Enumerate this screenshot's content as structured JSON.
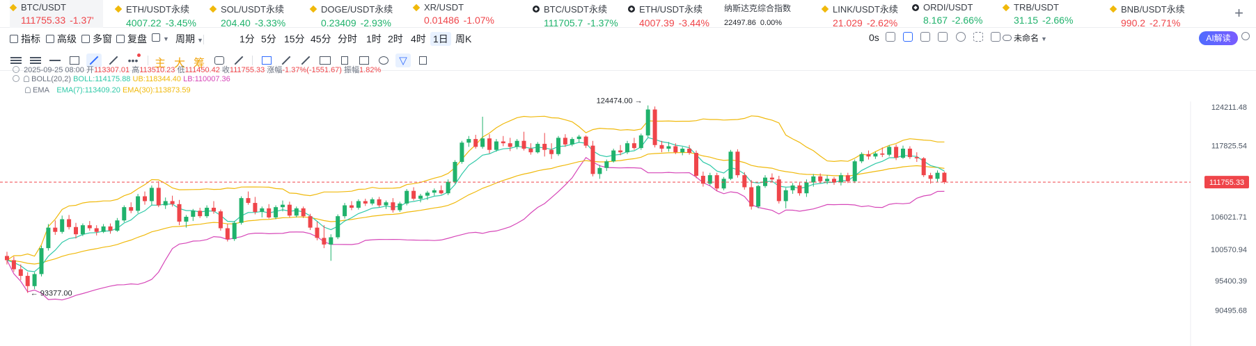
{
  "tickers": [
    {
      "name": "BTC/USDT",
      "price": "111755.33",
      "change": "-1.37'",
      "dir": "down",
      "icon": "binance-diamond-icon",
      "active": true
    },
    {
      "name": "ETH/USDT永续",
      "price": "4007.22",
      "change": "-3.45%",
      "dir": "up",
      "icon": "binance-diamond-icon"
    },
    {
      "name": "SOL/USDT永续",
      "price": "204.40",
      "change": "-3.33%",
      "dir": "up",
      "icon": "binance-diamond-icon"
    },
    {
      "name": "DOGE/USDT永续",
      "price": "0.23409",
      "change": "-2.93%",
      "dir": "up",
      "icon": "binance-diamond-icon"
    },
    {
      "name": "XR/USDT",
      "price": "0.01486",
      "change": "-1.07%",
      "dir": "down",
      "icon": "binance-diamond-icon"
    },
    {
      "name": "BTC/USDT永续",
      "price": "111705.7",
      "change": "-1.37%",
      "dir": "up",
      "icon": "okx-icon"
    },
    {
      "name": "ETH/USDT永续",
      "price": "4007.39",
      "change": "-3.44%",
      "dir": "down",
      "icon": "okx-icon"
    },
    {
      "name": "纳斯达克综合指数",
      "price": "22497.86",
      "change": "0.00%",
      "dir": "neutral",
      "icon": ""
    },
    {
      "name": "LINK/USDT永续",
      "price": "21.029",
      "change": "-2.62%",
      "dir": "down",
      "icon": "binance-diamond-icon"
    },
    {
      "name": "ORDI/USDT",
      "price": "8.167",
      "change": "-2.66%",
      "dir": "up",
      "icon": "okx-icon"
    },
    {
      "name": "TRB/USDT",
      "price": "31.15",
      "change": "-2.66%",
      "dir": "up",
      "icon": "binance-diamond-icon"
    },
    {
      "name": "BNB/USDT永续",
      "price": "990.2",
      "change": "-2.71%",
      "dir": "down",
      "icon": "binance-diamond-icon"
    }
  ],
  "add_button": "+",
  "toolbar": {
    "indicators": "指标",
    "advanced": "高级",
    "multi_window": "多窗",
    "replay": "复盘",
    "period": "周期",
    "intervals": [
      "1分",
      "5分",
      "15分",
      "45分",
      "分时",
      "1时",
      "2时",
      "4时",
      "1日",
      "周K"
    ],
    "active_interval": "1日",
    "countdown": "0s",
    "layout_name": "未命名",
    "ai_button": "AI解读"
  },
  "drawing_tools": {
    "main_label": "主",
    "large_label": "大",
    "chip_label": "筹"
  },
  "info": {
    "date": "2025-09-25 08:00",
    "open_label": "开",
    "open": "113307.01",
    "high_label": "高",
    "high": "113510.23",
    "low_label": "低",
    "low": "111450.42",
    "close_label": "收",
    "close": "111755.33",
    "change_label": "涨幅",
    "change": "-1.37%(-1551.67)",
    "amplitude_label": "振幅",
    "amplitude": "1.82%",
    "boll_name": "BOLL(20,2)",
    "boll_mid": "BOLL:114175.88",
    "boll_ub": "UB:118344.40",
    "boll_lb": "LB:110007.36",
    "ema_name": "EMA",
    "ema7": "EMA(7):113409.20",
    "ema30": "EMA(30):113873.59"
  },
  "colors": {
    "up": "#20b26c",
    "down": "#ef454a",
    "boll_mid": "#2fc9a8",
    "boll_upper": "#f0b90b",
    "boll_lower": "#d646b8",
    "ema7": "#2fc9a8",
    "ema30": "#f0b90b",
    "accent": "#2f6bff"
  },
  "chart_data": {
    "type": "candlestick",
    "interval": "1D",
    "ylim": [
      88000,
      128000
    ],
    "y_ticks": [
      "124211.48",
      "117825.54",
      "106021.71",
      "100570.94",
      "95400.39",
      "90495.68"
    ],
    "current_price": "111755.33",
    "annotations": [
      {
        "text": "124474.00",
        "price": 124474
      },
      {
        "text": "93377.00",
        "price": 93377
      }
    ],
    "candles": [
      [
        99500,
        100200,
        98100,
        98800
      ],
      [
        98800,
        99400,
        96900,
        97300
      ],
      [
        97300,
        98100,
        95500,
        96200
      ],
      [
        96200,
        96800,
        93377,
        94500
      ],
      [
        94500,
        96800,
        94000,
        96500
      ],
      [
        96500,
        101200,
        96100,
        100800
      ],
      [
        100800,
        104800,
        100400,
        104200
      ],
      [
        104200,
        105400,
        103000,
        103500
      ],
      [
        103500,
        106200,
        103200,
        105600
      ],
      [
        105600,
        106300,
        103900,
        104300
      ],
      [
        104300,
        105000,
        102400,
        103100
      ],
      [
        103100,
        104900,
        102800,
        104600
      ],
      [
        104600,
        105300,
        103700,
        104100
      ],
      [
        104100,
        104600,
        102900,
        103500
      ],
      [
        103500,
        104800,
        103300,
        104400
      ],
      [
        104400,
        104900,
        103200,
        103700
      ],
      [
        103700,
        105800,
        103500,
        105400
      ],
      [
        105400,
        107900,
        105100,
        107600
      ],
      [
        107600,
        108400,
        106600,
        107000
      ],
      [
        107000,
        109800,
        106600,
        109400
      ],
      [
        109400,
        110200,
        108000,
        108600
      ],
      [
        108600,
        111200,
        107900,
        110800
      ],
      [
        110800,
        111900,
        107600,
        107900
      ],
      [
        107900,
        109200,
        107300,
        108600
      ],
      [
        108600,
        109500,
        107700,
        108100
      ],
      [
        108100,
        108800,
        104600,
        105200
      ],
      [
        105200,
        106300,
        104200,
        106000
      ],
      [
        106000,
        107300,
        105300,
        107000
      ],
      [
        107000,
        107500,
        105800,
        106100
      ],
      [
        106100,
        107900,
        105800,
        107500
      ],
      [
        107500,
        108600,
        106500,
        106900
      ],
      [
        106900,
        107200,
        103700,
        104100
      ],
      [
        104100,
        104800,
        101900,
        102300
      ],
      [
        102300,
        105300,
        102000,
        105000
      ],
      [
        105000,
        109400,
        104700,
        109100
      ],
      [
        109100,
        110200,
        108000,
        108300
      ],
      [
        108300,
        109300,
        106400,
        106800
      ],
      [
        106800,
        107700,
        105900,
        107400
      ],
      [
        107400,
        108100,
        105700,
        105900
      ],
      [
        105900,
        107900,
        105600,
        107600
      ],
      [
        107600,
        108700,
        106900,
        108000
      ],
      [
        108000,
        108500,
        105900,
        106200
      ],
      [
        106200,
        107700,
        105900,
        107400
      ],
      [
        107400,
        107700,
        105800,
        106100
      ],
      [
        106100,
        106500,
        103800,
        104200
      ],
      [
        104200,
        105200,
        102100,
        102500
      ],
      [
        102500,
        104600,
        100800,
        101400
      ],
      [
        101400,
        103100,
        98700,
        102600
      ],
      [
        102600,
        106400,
        102300,
        106100
      ],
      [
        106100,
        108300,
        105700,
        107900
      ],
      [
        107900,
        108600,
        107100,
        107500
      ],
      [
        107500,
        108900,
        107200,
        108600
      ],
      [
        108600,
        109000,
        107800,
        108200
      ],
      [
        108200,
        109200,
        107900,
        108900
      ],
      [
        108900,
        109300,
        107600,
        107900
      ],
      [
        107900,
        108700,
        107300,
        108400
      ],
      [
        108400,
        109100,
        106700,
        107100
      ],
      [
        107100,
        108500,
        106800,
        108200
      ],
      [
        108200,
        110600,
        107900,
        110300
      ],
      [
        110300,
        110900,
        108700,
        109000
      ],
      [
        109000,
        109800,
        108400,
        109500
      ],
      [
        109500,
        110300,
        108800,
        110000
      ],
      [
        110000,
        110700,
        109500,
        110400
      ],
      [
        110400,
        111200,
        109700,
        109900
      ],
      [
        109900,
        112200,
        109600,
        111800
      ],
      [
        111800,
        115400,
        111500,
        115100
      ],
      [
        115100,
        118600,
        114800,
        118300
      ],
      [
        118300,
        119400,
        117600,
        118900
      ],
      [
        118900,
        119600,
        117300,
        117600
      ],
      [
        117600,
        122600,
        117300,
        119000
      ],
      [
        119000,
        119700,
        116500,
        117100
      ],
      [
        117100,
        118900,
        116800,
        118500
      ],
      [
        118500,
        119400,
        117700,
        118200
      ],
      [
        118200,
        119100,
        116900,
        117600
      ],
      [
        117600,
        118900,
        117200,
        118600
      ],
      [
        118600,
        120100,
        117000,
        117300
      ],
      [
        117300,
        118200,
        116300,
        116700
      ],
      [
        116700,
        118400,
        116500,
        118100
      ],
      [
        118100,
        119900,
        116000,
        117100
      ],
      [
        117100,
        118200,
        115600,
        116400
      ],
      [
        116400,
        119400,
        116100,
        119100
      ],
      [
        119100,
        119700,
        117600,
        118000
      ],
      [
        118000,
        119200,
        117700,
        118900
      ],
      [
        118900,
        119600,
        118300,
        119300
      ],
      [
        119300,
        119500,
        117400,
        117800
      ],
      [
        117800,
        118600,
        112700,
        113100
      ],
      [
        113100,
        114600,
        112300,
        114100
      ],
      [
        114100,
        115500,
        113600,
        115200
      ],
      [
        115200,
        117300,
        115000,
        117000
      ],
      [
        117000,
        117900,
        116200,
        116700
      ],
      [
        116700,
        118600,
        116400,
        118200
      ],
      [
        118200,
        119100,
        117100,
        117400
      ],
      [
        117400,
        119800,
        117100,
        119500
      ],
      [
        119500,
        124474,
        119200,
        123800
      ],
      [
        123800,
        124300,
        117500,
        117900
      ],
      [
        117900,
        118600,
        116700,
        117300
      ],
      [
        117300,
        118400,
        116800,
        117700
      ],
      [
        117700,
        118200,
        116400,
        116700
      ],
      [
        116700,
        117600,
        116200,
        117300
      ],
      [
        117300,
        117900,
        116300,
        116600
      ],
      [
        116600,
        117000,
        112400,
        112800
      ],
      [
        112800,
        113500,
        111000,
        111500
      ],
      [
        111500,
        113300,
        111200,
        112900
      ],
      [
        112900,
        113300,
        110300,
        110700
      ],
      [
        110700,
        112600,
        110400,
        112300
      ],
      [
        112300,
        117100,
        112100,
        116800
      ],
      [
        116800,
        117200,
        112500,
        112900
      ],
      [
        112900,
        113400,
        110500,
        110900
      ],
      [
        110900,
        112100,
        107200,
        107700
      ],
      [
        107700,
        111300,
        107400,
        111100
      ],
      [
        111100,
        112900,
        110800,
        112500
      ],
      [
        112500,
        113200,
        111800,
        112200
      ],
      [
        112200,
        112800,
        108200,
        108600
      ],
      [
        108600,
        110800,
        107400,
        110400
      ],
      [
        110400,
        111600,
        109800,
        111200
      ],
      [
        111200,
        111700,
        109500,
        109900
      ],
      [
        109900,
        112200,
        109300,
        111700
      ],
      [
        111700,
        113100,
        111000,
        112700
      ],
      [
        112700,
        113200,
        111600,
        111900
      ],
      [
        111900,
        112900,
        111400,
        112300
      ],
      [
        112300,
        112600,
        111300,
        111700
      ],
      [
        111700,
        113300,
        111200,
        112900
      ],
      [
        112900,
        113300,
        111600,
        111900
      ],
      [
        111900,
        115500,
        111600,
        115200
      ],
      [
        115200,
        116700,
        114900,
        116400
      ],
      [
        116400,
        117000,
        115500,
        116000
      ],
      [
        116000,
        116800,
        115600,
        116500
      ],
      [
        116500,
        117500,
        115900,
        116300
      ],
      [
        116300,
        117900,
        116000,
        117600
      ],
      [
        117600,
        118000,
        115400,
        115800
      ],
      [
        115800,
        117800,
        115600,
        117300
      ],
      [
        117300,
        117700,
        115600,
        115900
      ],
      [
        115900,
        116700,
        115100,
        115700
      ],
      [
        115700,
        115900,
        112600,
        112900
      ],
      [
        112900,
        113300,
        111500,
        112300
      ],
      [
        112300,
        113700,
        111800,
        113300
      ],
      [
        113307.01,
        113510.23,
        111450.42,
        111755.33
      ]
    ]
  }
}
